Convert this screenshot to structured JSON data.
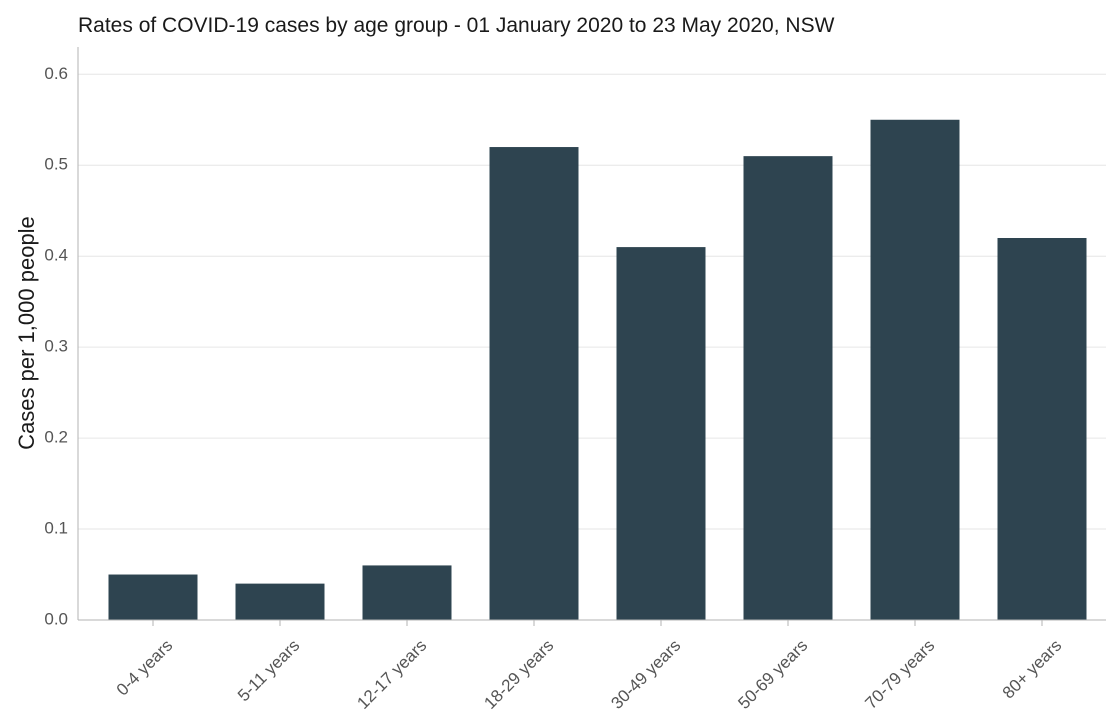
{
  "chart_data": {
    "type": "bar",
    "title": "Rates of COVID-19 cases by age group - 01 January 2020 to 23 May 2020, NSW",
    "xlabel": "",
    "ylabel": "Cases per 1,000 people",
    "categories": [
      "0-4 years",
      "5-11 years",
      "12-17 years",
      "18-29 years",
      "30-49 years",
      "50-69 years",
      "70-79 years",
      "80+ years"
    ],
    "values": [
      0.05,
      0.04,
      0.06,
      0.52,
      0.41,
      0.51,
      0.55,
      0.42
    ],
    "ylim": [
      0,
      0.6
    ],
    "yticks": [
      0.0,
      0.1,
      0.2,
      0.3,
      0.4,
      0.5,
      0.6
    ],
    "ytick_labels": [
      "0.0",
      "0.1",
      "0.2",
      "0.3",
      "0.4",
      "0.5",
      "0.6"
    ],
    "grid": true,
    "legend": "none",
    "bar_color": "#2e4450",
    "grid_color": "#e6e6e6",
    "axis_color": "#b3b3b3"
  }
}
